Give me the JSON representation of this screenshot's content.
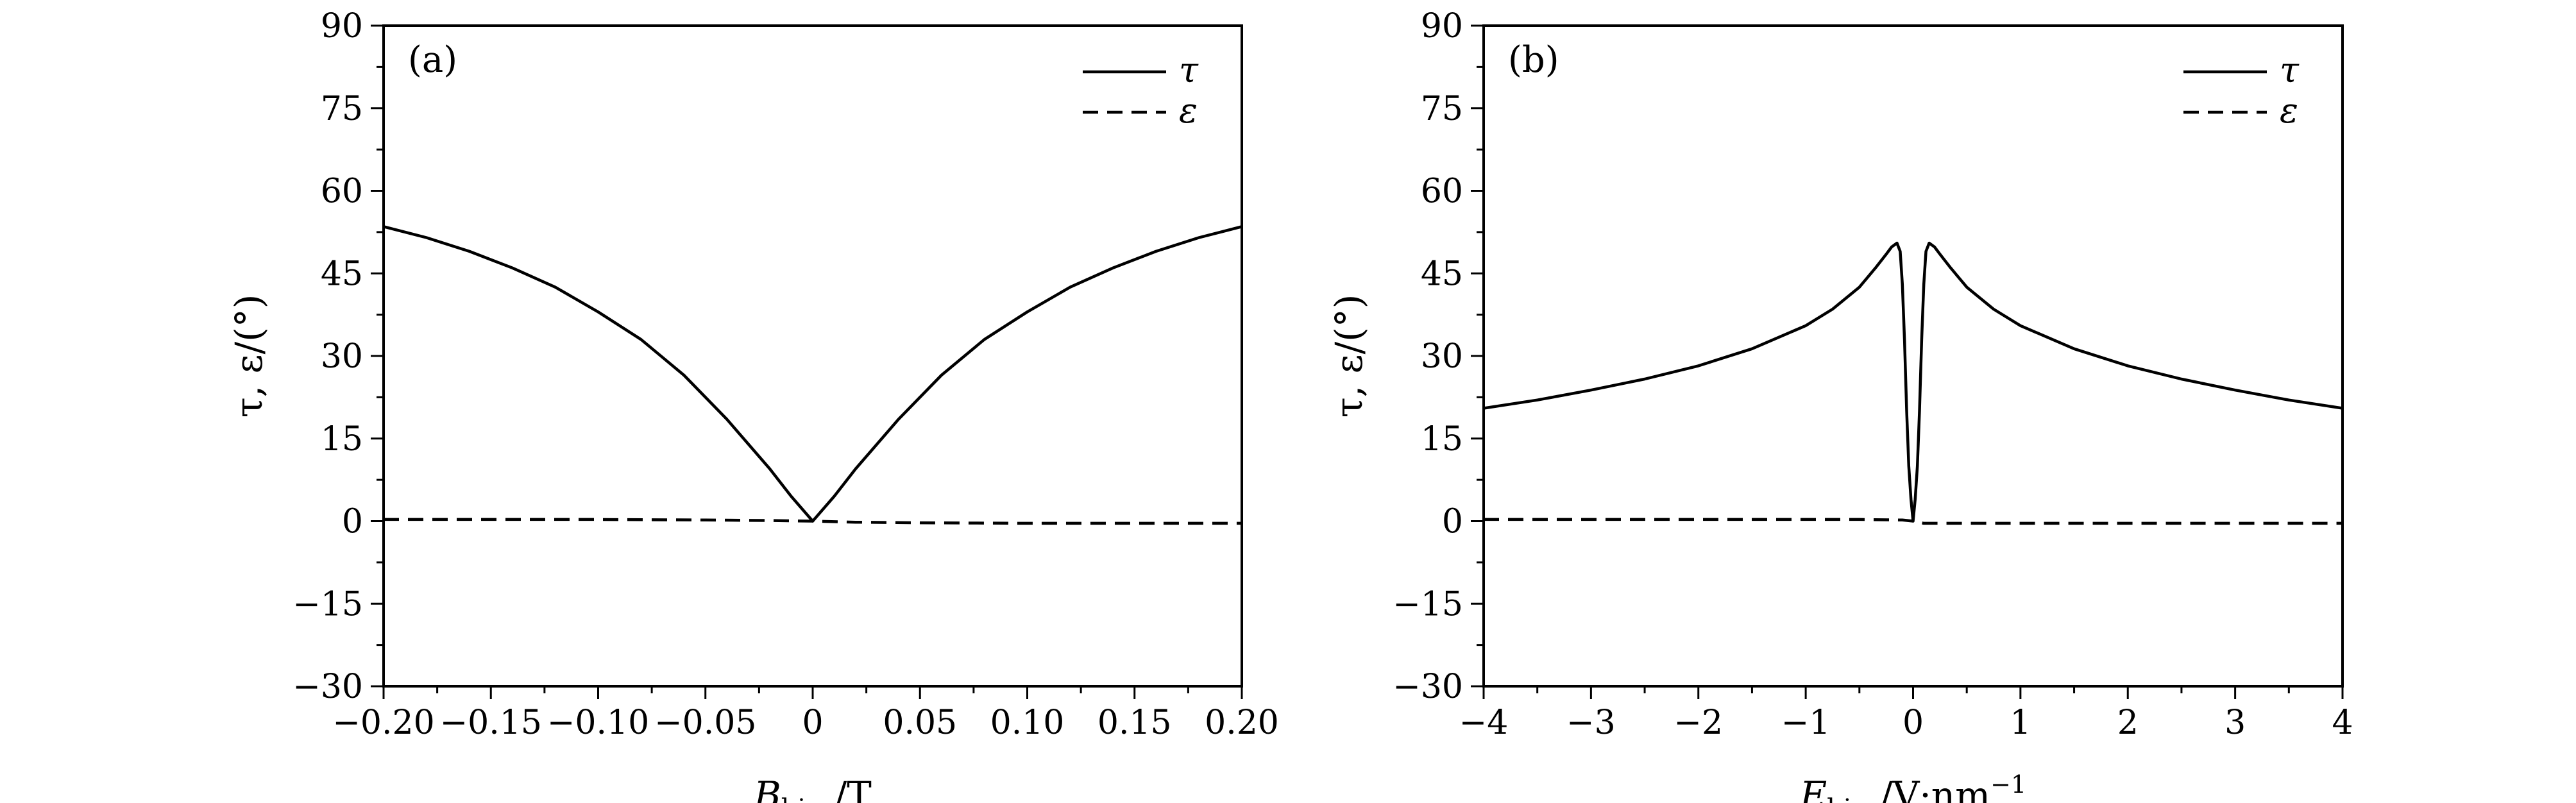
{
  "figure": {
    "panels": [
      {
        "tag": "(a)",
        "xlabel_main": "B",
        "xlabel_sub": "bias",
        "xlabel_unit": "/T",
        "xlabel_sup": "",
        "ylabel_text": "τ, ε/(°)",
        "legend": [
          "τ",
          "ε"
        ]
      },
      {
        "tag": "(b)",
        "xlabel_main": "E",
        "xlabel_sub": "bias",
        "xlabel_unit": "/V·nm",
        "xlabel_sup": "−1",
        "ylabel_text": "τ, ε/(°)",
        "legend": [
          "τ",
          "ε"
        ]
      }
    ]
  },
  "chart_data": [
    {
      "type": "line",
      "xlim": [
        -0.2,
        0.2
      ],
      "ylim": [
        -30,
        90
      ],
      "xticks": [
        -0.2,
        -0.15,
        -0.1,
        -0.05,
        0,
        0.05,
        0.1,
        0.15,
        0.2
      ],
      "xtick_labels": [
        "−0.20",
        "−0.15",
        "−0.10",
        "−0.05",
        "0",
        "0.05",
        "0.10",
        "0.15",
        "0.20"
      ],
      "yticks": [
        -30,
        -15,
        0,
        15,
        30,
        45,
        60,
        75,
        90
      ],
      "ytick_labels": [
        "−30",
        "−15",
        "0",
        "15",
        "30",
        "45",
        "60",
        "75",
        "90"
      ],
      "legend_position": "top-right",
      "grid": false,
      "series": [
        {
          "name": "τ",
          "style": "solid",
          "x": [
            -0.2,
            -0.18,
            -0.16,
            -0.14,
            -0.12,
            -0.1,
            -0.08,
            -0.06,
            -0.04,
            -0.02,
            -0.01,
            0,
            0.01,
            0.02,
            0.04,
            0.06,
            0.08,
            0.1,
            0.12,
            0.14,
            0.16,
            0.18,
            0.2
          ],
          "values": [
            53.5,
            51.5,
            49,
            46,
            42.5,
            38,
            33,
            26.5,
            18.5,
            9.5,
            4.5,
            0,
            4.5,
            9.5,
            18.5,
            26.5,
            33,
            38,
            42.5,
            46,
            49,
            51.5,
            53.5
          ]
        },
        {
          "name": "ε",
          "style": "dashed",
          "x": [
            -0.2,
            -0.1,
            -0.05,
            -0.02,
            0,
            0.02,
            0.05,
            0.1,
            0.2
          ],
          "values": [
            0.3,
            0.3,
            0.2,
            0.1,
            0,
            -0.2,
            -0.3,
            -0.4,
            -0.4
          ]
        }
      ]
    },
    {
      "type": "line",
      "xlim": [
        -4,
        4
      ],
      "ylim": [
        -30,
        90
      ],
      "xticks": [
        -4,
        -3,
        -2,
        -1,
        0,
        1,
        2,
        3,
        4
      ],
      "xtick_labels": [
        "−4",
        "−3",
        "−2",
        "−1",
        "0",
        "1",
        "2",
        "3",
        "4"
      ],
      "yticks": [
        -30,
        -15,
        0,
        15,
        30,
        45,
        60,
        75,
        90
      ],
      "ytick_labels": [
        "−30",
        "−15",
        "0",
        "15",
        "30",
        "45",
        "60",
        "75",
        "90"
      ],
      "legend_position": "top-right",
      "grid": false,
      "series": [
        {
          "name": "τ",
          "style": "solid",
          "x": [
            -4,
            -3.5,
            -3,
            -2.5,
            -2,
            -1.5,
            -1,
            -0.75,
            -0.5,
            -0.35,
            -0.25,
            -0.2,
            -0.15,
            -0.12,
            -0.1,
            -0.08,
            -0.06,
            -0.04,
            -0.02,
            0,
            0.02,
            0.04,
            0.06,
            0.08,
            0.1,
            0.12,
            0.15,
            0.2,
            0.25,
            0.35,
            0.5,
            0.75,
            1,
            1.5,
            2,
            2.5,
            3,
            3.5,
            4
          ],
          "values": [
            20.5,
            22,
            23.8,
            25.8,
            28.2,
            31.3,
            35.5,
            38.5,
            42.5,
            46,
            48.5,
            49.8,
            50.5,
            49,
            43,
            33,
            20,
            10,
            4,
            0,
            4,
            10,
            20,
            33,
            43,
            49,
            50.5,
            49.8,
            48.5,
            46,
            42.5,
            38.5,
            35.5,
            31.3,
            28.2,
            25.8,
            23.8,
            22,
            20.5
          ]
        },
        {
          "name": "ε",
          "style": "dashed",
          "x": [
            -4,
            -2,
            -1,
            -0.5,
            -0.1,
            0,
            0.1,
            0.5,
            1,
            2,
            4
          ],
          "values": [
            0.3,
            0.3,
            0.3,
            0.3,
            0.2,
            0,
            -0.4,
            -0.4,
            -0.4,
            -0.4,
            -0.4
          ]
        }
      ]
    }
  ]
}
